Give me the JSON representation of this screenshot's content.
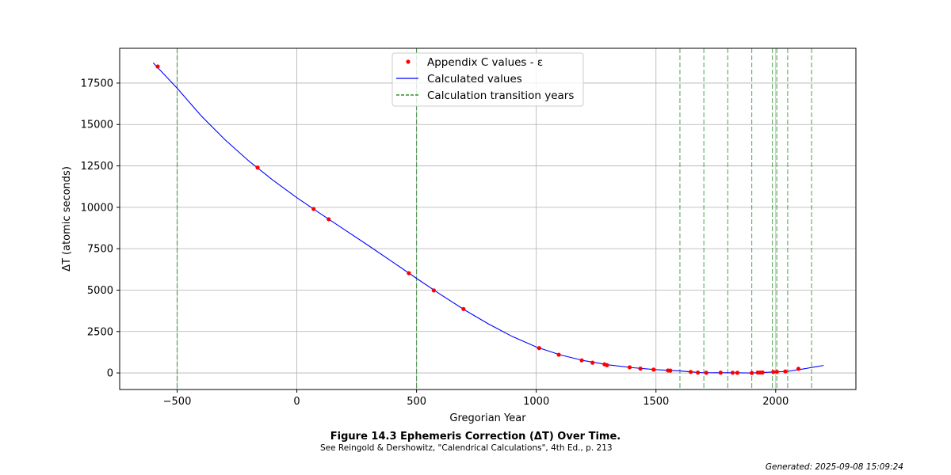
{
  "chart_data": {
    "type": "line",
    "title": "",
    "xlabel": "Gregorian Year",
    "ylabel": "ΔT (atomic seconds)",
    "xlim": [
      -740,
      2335
    ],
    "ylim": [
      -1000,
      19600
    ],
    "x_ticks": [
      -500,
      0,
      500,
      1000,
      1500,
      2000
    ],
    "x_tick_labels": [
      "−500",
      "0",
      "500",
      "1000",
      "1500",
      "2000"
    ],
    "y_ticks": [
      0,
      2500,
      5000,
      7500,
      10000,
      12500,
      15000,
      17500
    ],
    "y_tick_labels": [
      "0",
      "2500",
      "5000",
      "7500",
      "10000",
      "12500",
      "15000",
      "17500"
    ],
    "grid": true,
    "legend_position": "top-center",
    "series": [
      {
        "name": "Appendix C values - ε",
        "kind": "scatter",
        "color": "#ff0000",
        "points": [
          [
            -581,
            18500
          ],
          [
            -164,
            12400
          ],
          [
            70,
            9900
          ],
          [
            133,
            9280
          ],
          [
            468,
            6020
          ],
          [
            572,
            4980
          ],
          [
            696,
            3860
          ],
          [
            1012,
            1500
          ],
          [
            1094,
            1100
          ],
          [
            1190,
            760
          ],
          [
            1235,
            620
          ],
          [
            1285,
            520
          ],
          [
            1295,
            470
          ],
          [
            1390,
            340
          ],
          [
            1435,
            260
          ],
          [
            1490,
            200
          ],
          [
            1550,
            150
          ],
          [
            1560,
            140
          ],
          [
            1645,
            60
          ],
          [
            1675,
            20
          ],
          [
            1710,
            10
          ],
          [
            1770,
            15
          ],
          [
            1820,
            12
          ],
          [
            1840,
            8
          ],
          [
            1900,
            -2
          ],
          [
            1925,
            24
          ],
          [
            1935,
            24
          ],
          [
            1945,
            27
          ],
          [
            1990,
            57
          ],
          [
            2005,
            65
          ],
          [
            2040,
            90
          ],
          [
            2095,
            250
          ]
        ]
      },
      {
        "name": "Calculated values",
        "kind": "line",
        "color": "#0000ff",
        "points": [
          [
            -600,
            18719
          ],
          [
            -500,
            17190
          ],
          [
            -400,
            15530
          ],
          [
            -300,
            14080
          ],
          [
            -200,
            12790
          ],
          [
            -100,
            11640
          ],
          [
            0,
            10580
          ],
          [
            100,
            9600
          ],
          [
            200,
            8640
          ],
          [
            300,
            7680
          ],
          [
            400,
            6700
          ],
          [
            500,
            5710
          ],
          [
            600,
            4740
          ],
          [
            700,
            3810
          ],
          [
            800,
            2960
          ],
          [
            900,
            2200
          ],
          [
            1000,
            1570
          ],
          [
            1100,
            1090
          ],
          [
            1200,
            740
          ],
          [
            1300,
            490
          ],
          [
            1400,
            320
          ],
          [
            1500,
            200
          ],
          [
            1600,
            120
          ],
          [
            1650,
            60
          ],
          [
            1700,
            10
          ],
          [
            1750,
            13
          ],
          [
            1800,
            14
          ],
          [
            1850,
            7
          ],
          [
            1900,
            -3
          ],
          [
            1950,
            29
          ],
          [
            2000,
            64
          ],
          [
            2050,
            93
          ],
          [
            2100,
            203
          ],
          [
            2150,
            328
          ],
          [
            2200,
            452
          ]
        ]
      },
      {
        "name": "Calculation transition years",
        "kind": "vline",
        "color": "#008000",
        "x": [
          -500,
          500,
          1600,
          1700,
          1800,
          1900,
          1986,
          2005,
          2050,
          2150
        ]
      }
    ],
    "caption_title": "Figure 14.3 Ephemeris Correction (ΔT) Over Time.",
    "caption_subtitle": "See Reingold & Dershowitz, \"Calendrical Calculations\", 4th Ed., p. 213"
  },
  "footer": {
    "generated": "Generated: 2025-09-08 15:09:24"
  },
  "colors": {
    "grid": "#b0b0b0",
    "axes": "#000000",
    "legend_border": "#cccccc"
  }
}
